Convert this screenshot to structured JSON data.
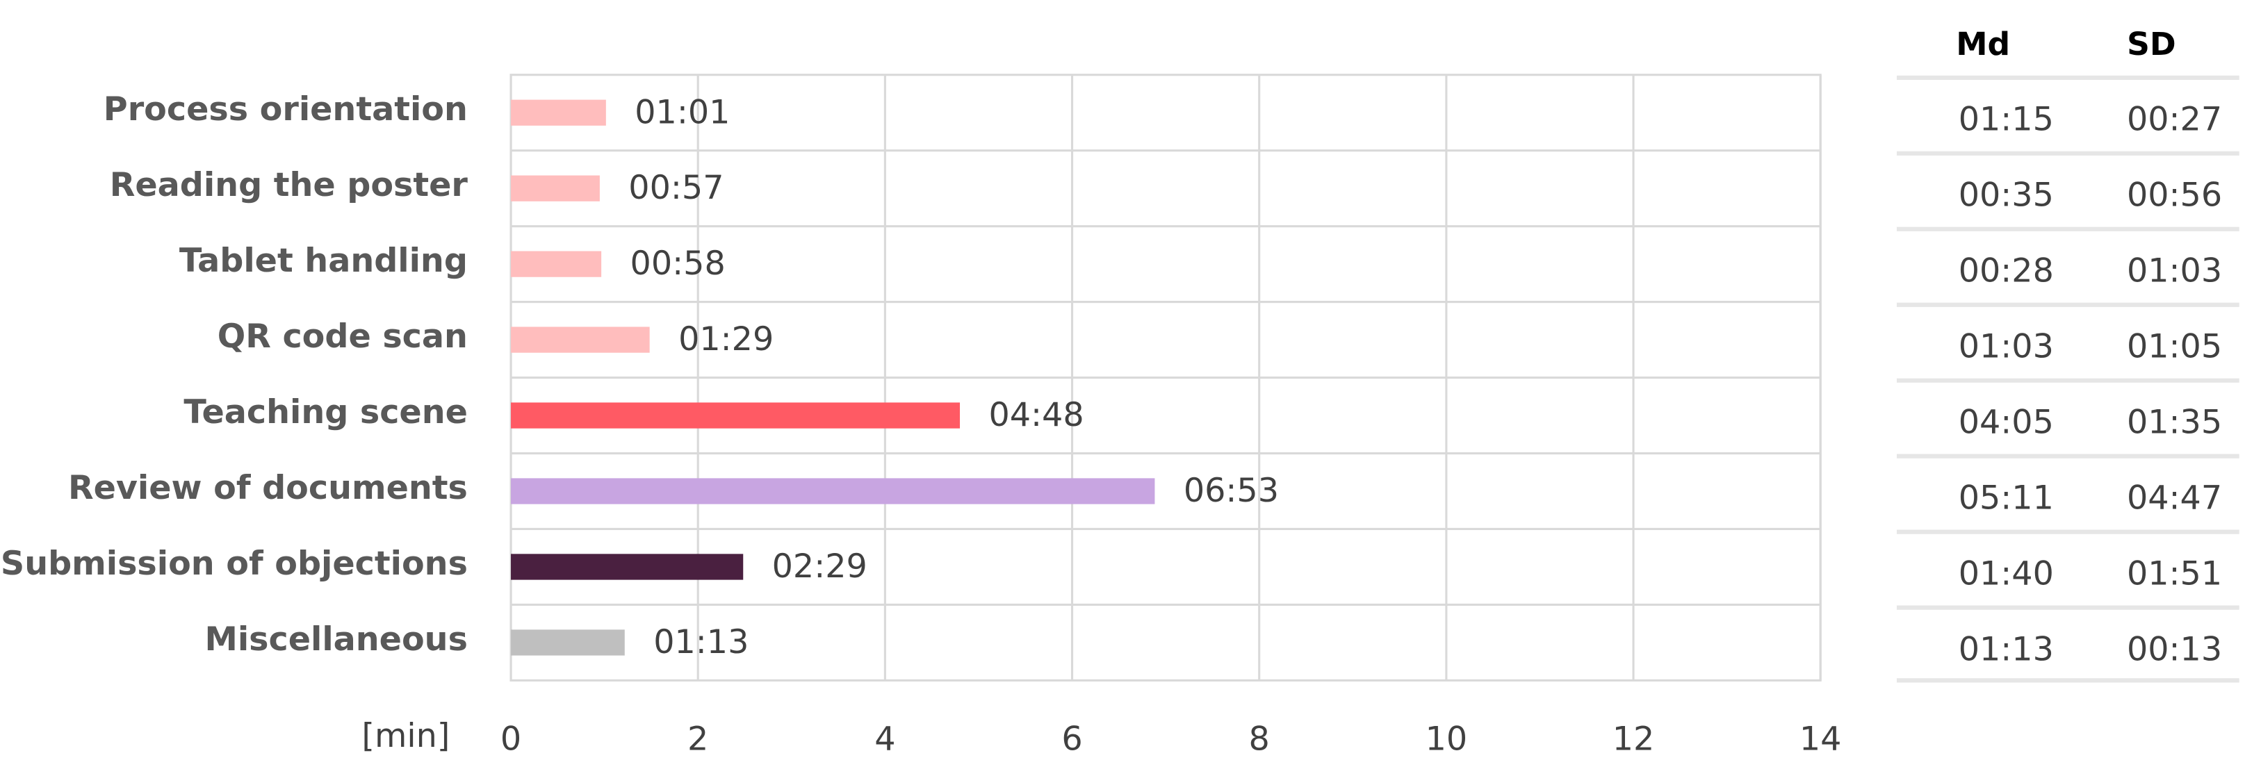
{
  "chart_data": {
    "type": "bar",
    "orientation": "horizontal",
    "categories": [
      "Process orientation",
      "Reading the poster",
      "Tablet handling",
      "QR code scan",
      "Teaching scene",
      "Review of documents",
      "Submission of objections",
      "Miscellaneous"
    ],
    "values": [
      1.0167,
      0.95,
      0.9667,
      1.4833,
      4.8,
      6.8833,
      2.4833,
      1.2167
    ],
    "value_labels": [
      "01:01",
      "00:57",
      "00:58",
      "01:29",
      "04:48",
      "06:53",
      "02:29",
      "01:13"
    ],
    "colors": [
      "#ffbdbd",
      "#ffbdbd",
      "#ffbdbd",
      "#ffbdbd",
      "#ff5a64",
      "#c8a5e1",
      "#4a2040",
      "#bfbfbf"
    ],
    "x_label": "[min]",
    "xlim": [
      0,
      14
    ],
    "xticks": [
      0,
      2,
      4,
      6,
      8,
      10,
      12,
      14
    ],
    "grid": true,
    "table": {
      "columns": [
        "Md",
        "SD"
      ],
      "rows": [
        [
          "01:15",
          "00:27"
        ],
        [
          "00:35",
          "00:56"
        ],
        [
          "00:28",
          "01:03"
        ],
        [
          "01:03",
          "01:05"
        ],
        [
          "04:05",
          "01:35"
        ],
        [
          "05:11",
          "04:47"
        ],
        [
          "01:40",
          "01:51"
        ],
        [
          "01:13",
          "00:13"
        ]
      ]
    }
  }
}
